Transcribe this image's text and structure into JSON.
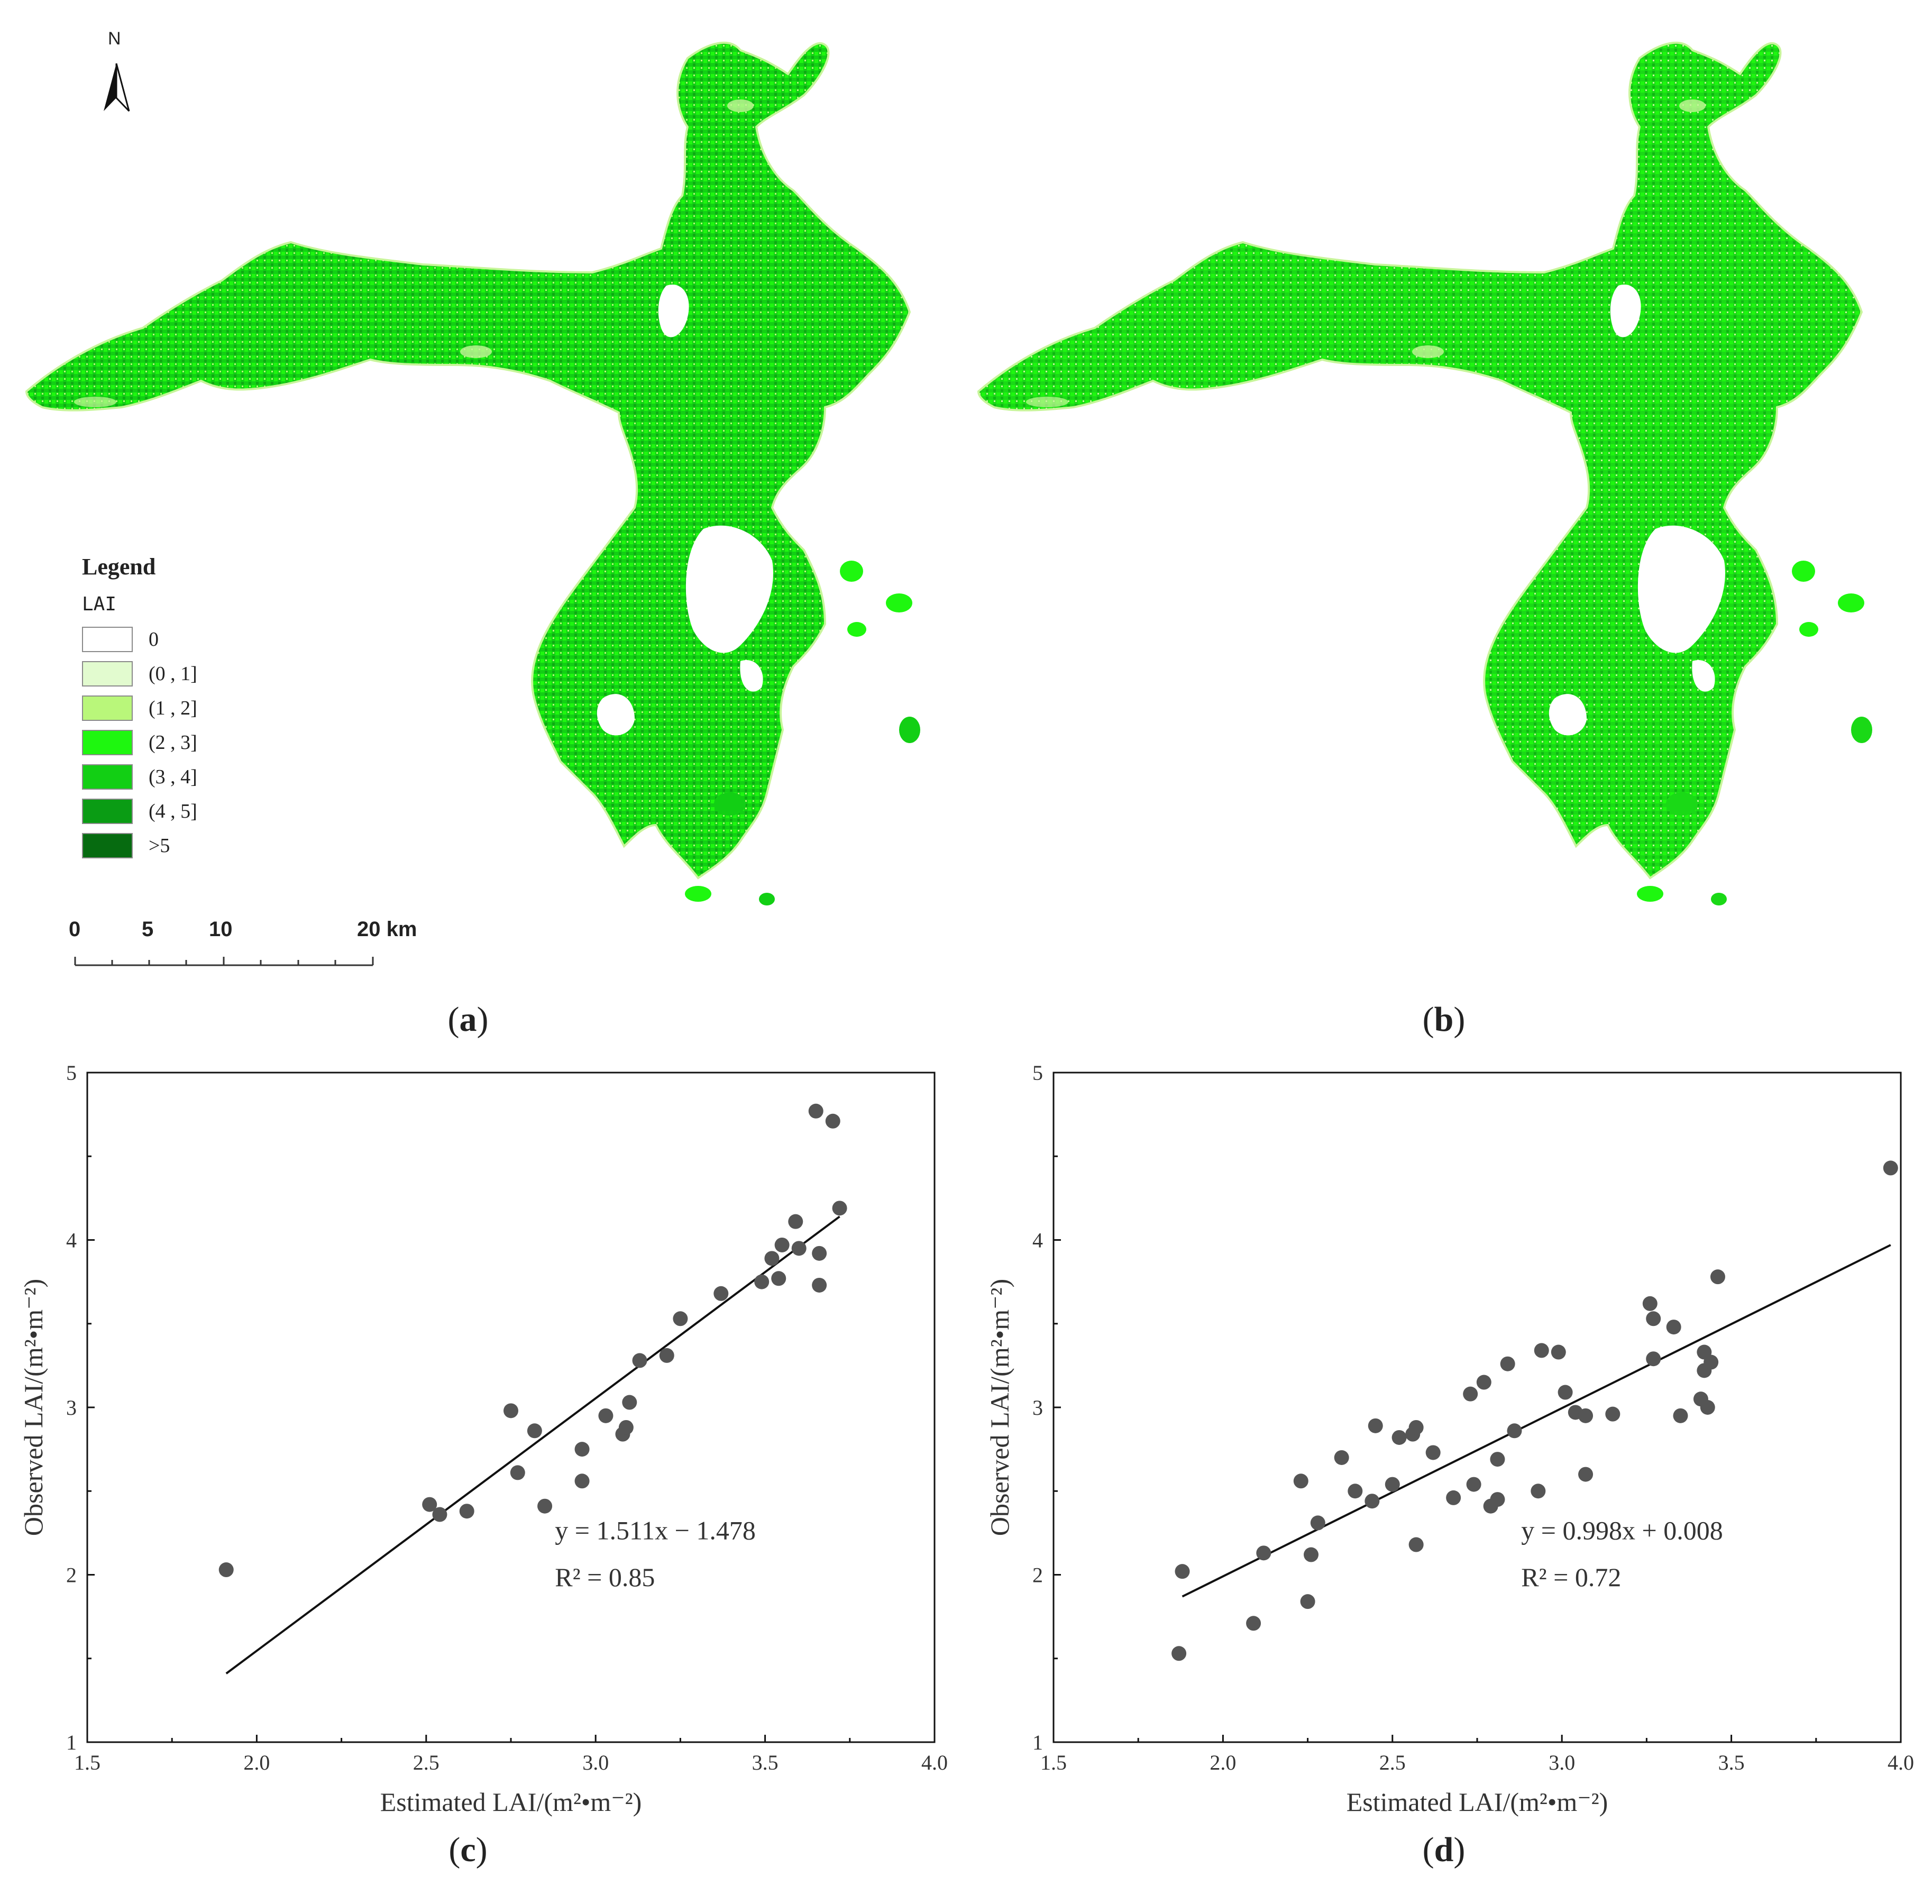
{
  "maps": {
    "north_label": "N",
    "legend": {
      "title": "Legend",
      "subtitle": "LAI",
      "items": [
        {
          "label": "0",
          "color": "#ffffff"
        },
        {
          "label": "(0 , 1]",
          "color": "#e2fbcf"
        },
        {
          "label": "(1 , 2]",
          "color": "#b9f77a"
        },
        {
          "label": "(2 , 3]",
          "color": "#1ef70f"
        },
        {
          "label": "(3 , 4]",
          "color": "#12cf14"
        },
        {
          "label": "(4 , 5]",
          "color": "#0a9c14"
        },
        {
          "label": ">5",
          "color": "#066b10"
        }
      ]
    },
    "scale_bar": {
      "labels": [
        "0",
        "5",
        "10",
        "20 km"
      ]
    },
    "panel_labels": [
      "a",
      "b"
    ]
  },
  "scatter_panels": [
    "c",
    "d"
  ],
  "chart_data": [
    {
      "type": "scatter",
      "panel": "c",
      "xlabel": "Estimated LAI/(m²•m⁻²)",
      "ylabel": "Observed LAI/(m²•m⁻²)",
      "xlim": [
        1.5,
        4.0
      ],
      "ylim": [
        1,
        5
      ],
      "xticks": [
        "1.5",
        "2.0",
        "2.5",
        "3.0",
        "3.5",
        "4.0"
      ],
      "yticks": [
        "1",
        "2",
        "3",
        "4",
        "5"
      ],
      "equation": "y = 1.511x − 1.478",
      "r2": "R² = 0.85",
      "fit": {
        "x": [
          1.91,
          3.72
        ],
        "y": [
          1.41,
          4.14
        ]
      },
      "points": [
        [
          1.91,
          2.03
        ],
        [
          2.51,
          2.42
        ],
        [
          2.54,
          2.36
        ],
        [
          2.62,
          2.38
        ],
        [
          2.75,
          2.98
        ],
        [
          2.77,
          2.61
        ],
        [
          2.82,
          2.86
        ],
        [
          2.85,
          2.41
        ],
        [
          2.96,
          2.56
        ],
        [
          2.96,
          2.75
        ],
        [
          3.03,
          2.95
        ],
        [
          3.08,
          2.84
        ],
        [
          3.09,
          2.88
        ],
        [
          3.1,
          3.03
        ],
        [
          3.13,
          3.28
        ],
        [
          3.21,
          3.31
        ],
        [
          3.25,
          3.53
        ],
        [
          3.37,
          3.68
        ],
        [
          3.49,
          3.75
        ],
        [
          3.52,
          3.89
        ],
        [
          3.54,
          3.77
        ],
        [
          3.55,
          3.97
        ],
        [
          3.59,
          4.11
        ],
        [
          3.6,
          3.95
        ],
        [
          3.65,
          4.77
        ],
        [
          3.66,
          3.92
        ],
        [
          3.66,
          3.73
        ],
        [
          3.7,
          4.71
        ],
        [
          3.72,
          4.19
        ]
      ]
    },
    {
      "type": "scatter",
      "panel": "d",
      "xlabel": "Estimated LAI/(m²•m⁻²)",
      "ylabel": "Observed LAI/(m²•m⁻²)",
      "xlim": [
        1.5,
        4.0
      ],
      "ylim": [
        1,
        5
      ],
      "xticks": [
        "1.5",
        "2.0",
        "2.5",
        "3.0",
        "3.5",
        "4.0"
      ],
      "yticks": [
        "1",
        "2",
        "3",
        "4",
        "5"
      ],
      "equation": "y = 0.998x + 0.008",
      "r2": "R² = 0.72",
      "fit": {
        "x": [
          1.88,
          3.97
        ],
        "y": [
          1.87,
          3.97
        ]
      },
      "points": [
        [
          1.87,
          1.53
        ],
        [
          1.88,
          2.02
        ],
        [
          2.09,
          1.71
        ],
        [
          2.12,
          2.13
        ],
        [
          2.23,
          2.56
        ],
        [
          2.25,
          1.84
        ],
        [
          2.26,
          2.12
        ],
        [
          2.28,
          2.31
        ],
        [
          2.35,
          2.7
        ],
        [
          2.39,
          2.5
        ],
        [
          2.44,
          2.44
        ],
        [
          2.45,
          2.89
        ],
        [
          2.5,
          2.54
        ],
        [
          2.52,
          2.82
        ],
        [
          2.56,
          2.84
        ],
        [
          2.57,
          2.88
        ],
        [
          2.57,
          2.18
        ],
        [
          2.62,
          2.73
        ],
        [
          2.68,
          2.46
        ],
        [
          2.73,
          3.08
        ],
        [
          2.74,
          2.54
        ],
        [
          2.77,
          3.15
        ],
        [
          2.79,
          2.41
        ],
        [
          2.81,
          2.45
        ],
        [
          2.81,
          2.69
        ],
        [
          2.84,
          3.26
        ],
        [
          2.86,
          2.86
        ],
        [
          2.93,
          2.5
        ],
        [
          2.94,
          3.34
        ],
        [
          2.99,
          3.33
        ],
        [
          3.01,
          3.09
        ],
        [
          3.04,
          2.97
        ],
        [
          3.07,
          2.95
        ],
        [
          3.07,
          2.6
        ],
        [
          3.15,
          2.96
        ],
        [
          3.26,
          3.62
        ],
        [
          3.27,
          3.53
        ],
        [
          3.27,
          3.29
        ],
        [
          3.33,
          3.48
        ],
        [
          3.35,
          2.95
        ],
        [
          3.41,
          3.05
        ],
        [
          3.42,
          3.33
        ],
        [
          3.42,
          3.22
        ],
        [
          3.43,
          3.0
        ],
        [
          3.44,
          3.27
        ],
        [
          3.46,
          3.78
        ],
        [
          3.97,
          4.43
        ]
      ]
    }
  ]
}
